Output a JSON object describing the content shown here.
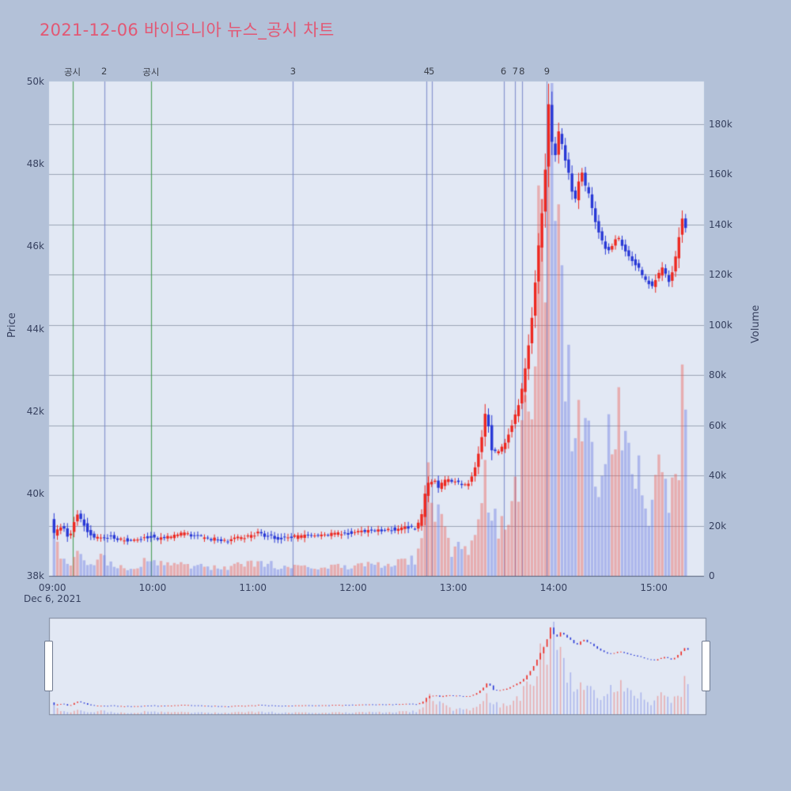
{
  "title": "2021-12-06 바이오니아 뉴스_공시 차트",
  "colors": {
    "paper_bg": "#b3c1d8",
    "plot_bg": "#e2e8f4",
    "title": "#e25874",
    "up": "#ee2820",
    "down": "#2838d6",
    "volume_up": "rgba(238,90,80,0.42)",
    "volume_down": "rgba(95,110,225,0.40)",
    "grid": "rgba(110,120,140,0.60)",
    "axis_line": "rgba(70,80,105,0.85)",
    "tick": "#37415f",
    "annotation_text": "#3a3f4a",
    "vline_news": "#3c9646",
    "vline_event": "#7887c8"
  },
  "axes": {
    "price_title": "Price",
    "volume_title": "Volume",
    "date_label": "Dec 6, 2021",
    "price_ticks": [
      {
        "label": "38k",
        "value": 38000
      },
      {
        "label": "40k",
        "value": 40000
      },
      {
        "label": "42k",
        "value": 42000
      },
      {
        "label": "44k",
        "value": 44000
      },
      {
        "label": "46k",
        "value": 46000
      },
      {
        "label": "48k",
        "value": 48000
      },
      {
        "label": "50k",
        "value": 50000
      }
    ],
    "volume_ticks": [
      {
        "label": "0",
        "value": 0
      },
      {
        "label": "20k",
        "value": 20000
      },
      {
        "label": "40k",
        "value": 40000
      },
      {
        "label": "60k",
        "value": 60000
      },
      {
        "label": "80k",
        "value": 80000
      },
      {
        "label": "100k",
        "value": 100000
      },
      {
        "label": "120k",
        "value": 120000
      },
      {
        "label": "140k",
        "value": 140000
      },
      {
        "label": "160k",
        "value": 160000
      },
      {
        "label": "180k",
        "value": 180000
      }
    ],
    "time_ticks": [
      {
        "label": "09:00",
        "minute": 0
      },
      {
        "label": "10:00",
        "minute": 60
      },
      {
        "label": "11:00",
        "minute": 120
      },
      {
        "label": "12:00",
        "minute": 180
      },
      {
        "label": "13:00",
        "minute": 240
      },
      {
        "label": "14:00",
        "minute": 300
      },
      {
        "label": "15:00",
        "minute": 360
      }
    ]
  },
  "annotations": [
    {
      "label": "공시",
      "minute": 12,
      "kind": "news"
    },
    {
      "label": "2",
      "minute": 31,
      "kind": "event"
    },
    {
      "label": "공시",
      "minute": 59,
      "kind": "news"
    },
    {
      "label": "3",
      "minute": 144,
      "kind": "event"
    },
    {
      "label": "4",
      "minute": 224,
      "kind": "event"
    },
    {
      "label": "5",
      "minute": 227,
      "kind": "event"
    },
    {
      "label": "6",
      "minute": 270,
      "kind": "event"
    },
    {
      "label": "7",
      "minute": 277,
      "kind": "event"
    },
    {
      "label": "8",
      "minute": 281,
      "kind": "event"
    },
    {
      "label": "9",
      "minute": 296,
      "kind": "event"
    }
  ],
  "chart_data": {
    "type": "candlestick+volume",
    "title": "2021-12-06 바이오니아 뉴스_공시 차트",
    "x_unit": "minutes since 09:00 on Dec 6, 2021",
    "x_range": [
      -2,
      390
    ],
    "price_range": [
      38000,
      50000
    ],
    "volume_axis_max_tick": 180000,
    "grid": "horizontal",
    "legend": false,
    "rangeslider": true,
    "up_color_meaning": "close >= open (red)",
    "down_color_meaning": "close < open (blue)",
    "price_path": [
      [
        0,
        39400
      ],
      [
        1,
        38850
      ],
      [
        3,
        39150
      ],
      [
        5,
        39050
      ],
      [
        7,
        39350
      ],
      [
        9,
        38950
      ],
      [
        11,
        39000
      ],
      [
        13,
        39100
      ],
      [
        15,
        39550
      ],
      [
        17,
        39480
      ],
      [
        19,
        39300
      ],
      [
        22,
        39100
      ],
      [
        25,
        38950
      ],
      [
        28,
        38920
      ],
      [
        31,
        38900
      ],
      [
        35,
        38960
      ],
      [
        40,
        38900
      ],
      [
        45,
        38870
      ],
      [
        50,
        38900
      ],
      [
        55,
        38930
      ],
      [
        60,
        38960
      ],
      [
        65,
        38900
      ],
      [
        70,
        38930
      ],
      [
        75,
        39000
      ],
      [
        80,
        39050
      ],
      [
        85,
        38980
      ],
      [
        90,
        38940
      ],
      [
        95,
        38900
      ],
      [
        100,
        38880
      ],
      [
        105,
        38850
      ],
      [
        110,
        38900
      ],
      [
        115,
        38930
      ],
      [
        120,
        38960
      ],
      [
        124,
        39060
      ],
      [
        128,
        38990
      ],
      [
        133,
        38930
      ],
      [
        140,
        38900
      ],
      [
        148,
        38950
      ],
      [
        156,
        38990
      ],
      [
        165,
        39000
      ],
      [
        173,
        39020
      ],
      [
        180,
        39050
      ],
      [
        188,
        39090
      ],
      [
        196,
        39110
      ],
      [
        203,
        39140
      ],
      [
        208,
        39100
      ],
      [
        213,
        39180
      ],
      [
        217,
        39150
      ],
      [
        221,
        39280
      ],
      [
        223,
        39650
      ],
      [
        225,
        40300
      ],
      [
        227,
        40150
      ],
      [
        229,
        40450
      ],
      [
        232,
        40100
      ],
      [
        235,
        40280
      ],
      [
        239,
        40350
      ],
      [
        243,
        40260
      ],
      [
        247,
        40180
      ],
      [
        251,
        40300
      ],
      [
        255,
        40750
      ],
      [
        257,
        41200
      ],
      [
        259,
        41550
      ],
      [
        260,
        41900
      ],
      [
        261,
        42200
      ],
      [
        263,
        41100
      ],
      [
        266,
        41000
      ],
      [
        269,
        41080
      ],
      [
        271,
        41150
      ],
      [
        273,
        41350
      ],
      [
        275,
        41550
      ],
      [
        277,
        41750
      ],
      [
        279,
        42050
      ],
      [
        281,
        42300
      ],
      [
        283,
        42700
      ],
      [
        285,
        43300
      ],
      [
        287,
        43900
      ],
      [
        289,
        44700
      ],
      [
        291,
        45600
      ],
      [
        293,
        46400
      ],
      [
        295,
        47200
      ],
      [
        296,
        47900
      ],
      [
        297,
        48700
      ],
      [
        298,
        49450
      ],
      [
        299,
        49000
      ],
      [
        300,
        48500
      ],
      [
        302,
        48200
      ],
      [
        304,
        48750
      ],
      [
        306,
        48450
      ],
      [
        308,
        48100
      ],
      [
        310,
        47750
      ],
      [
        312,
        47350
      ],
      [
        314,
        47150
      ],
      [
        316,
        47550
      ],
      [
        318,
        47800
      ],
      [
        320,
        47450
      ],
      [
        322,
        47250
      ],
      [
        324,
        46900
      ],
      [
        326,
        46600
      ],
      [
        328,
        46350
      ],
      [
        330,
        46150
      ],
      [
        333,
        45850
      ],
      [
        336,
        46050
      ],
      [
        339,
        46250
      ],
      [
        342,
        46050
      ],
      [
        345,
        45800
      ],
      [
        348,
        45650
      ],
      [
        351,
        45500
      ],
      [
        354,
        45300
      ],
      [
        357,
        45150
      ],
      [
        360,
        45050
      ],
      [
        363,
        45250
      ],
      [
        366,
        45450
      ],
      [
        368,
        45300
      ],
      [
        370,
        45150
      ],
      [
        372,
        45350
      ],
      [
        374,
        45750
      ],
      [
        376,
        46250
      ],
      [
        377,
        47200
      ],
      [
        378,
        46650
      ],
      [
        379,
        46300
      ],
      [
        380,
        46450
      ]
    ],
    "volume_profile": [
      [
        0,
        21000
      ],
      [
        2,
        13000
      ],
      [
        5,
        9000
      ],
      [
        8,
        6500
      ],
      [
        11,
        5500
      ],
      [
        15,
        13500
      ],
      [
        18,
        8000
      ],
      [
        22,
        6000
      ],
      [
        26,
        4500
      ],
      [
        30,
        9000
      ],
      [
        35,
        5000
      ],
      [
        40,
        4000
      ],
      [
        45,
        3600
      ],
      [
        50,
        3400
      ],
      [
        55,
        7500
      ],
      [
        58,
        9500
      ],
      [
        62,
        6000
      ],
      [
        68,
        4200
      ],
      [
        75,
        5200
      ],
      [
        82,
        4500
      ],
      [
        90,
        3600
      ],
      [
        100,
        3200
      ],
      [
        110,
        4200
      ],
      [
        120,
        5200
      ],
      [
        126,
        6000
      ],
      [
        133,
        4200
      ],
      [
        140,
        3200
      ],
      [
        150,
        3600
      ],
      [
        160,
        3200
      ],
      [
        170,
        3800
      ],
      [
        180,
        4200
      ],
      [
        190,
        5200
      ],
      [
        200,
        4800
      ],
      [
        208,
        5200
      ],
      [
        215,
        6200
      ],
      [
        220,
        9000
      ],
      [
        222,
        16000
      ],
      [
        224,
        32000
      ],
      [
        226,
        42000
      ],
      [
        228,
        31000
      ],
      [
        231,
        23000
      ],
      [
        235,
        16000
      ],
      [
        239,
        12500
      ],
      [
        244,
        10500
      ],
      [
        249,
        12000
      ],
      [
        253,
        18000
      ],
      [
        256,
        30000
      ],
      [
        259,
        38000
      ],
      [
        262,
        30000
      ],
      [
        266,
        20000
      ],
      [
        270,
        22000
      ],
      [
        273,
        26000
      ],
      [
        276,
        34000
      ],
      [
        279,
        42000
      ],
      [
        282,
        52000
      ],
      [
        285,
        72000
      ],
      [
        288,
        105000
      ],
      [
        291,
        140000
      ],
      [
        294,
        165000
      ],
      [
        296,
        180000
      ],
      [
        297,
        190000
      ],
      [
        299,
        165000
      ],
      [
        301,
        135000
      ],
      [
        304,
        110000
      ],
      [
        307,
        88000
      ],
      [
        310,
        70000
      ],
      [
        313,
        56000
      ],
      [
        316,
        66000
      ],
      [
        319,
        56000
      ],
      [
        323,
        46000
      ],
      [
        327,
        38000
      ],
      [
        331,
        52000
      ],
      [
        334,
        88000
      ],
      [
        337,
        60000
      ],
      [
        341,
        78000
      ],
      [
        345,
        52000
      ],
      [
        349,
        40000
      ],
      [
        353,
        34000
      ],
      [
        357,
        30000
      ],
      [
        361,
        44000
      ],
      [
        365,
        34000
      ],
      [
        369,
        30000
      ],
      [
        373,
        42000
      ],
      [
        376,
        58000
      ],
      [
        378,
        92000
      ],
      [
        380,
        54000
      ]
    ]
  }
}
